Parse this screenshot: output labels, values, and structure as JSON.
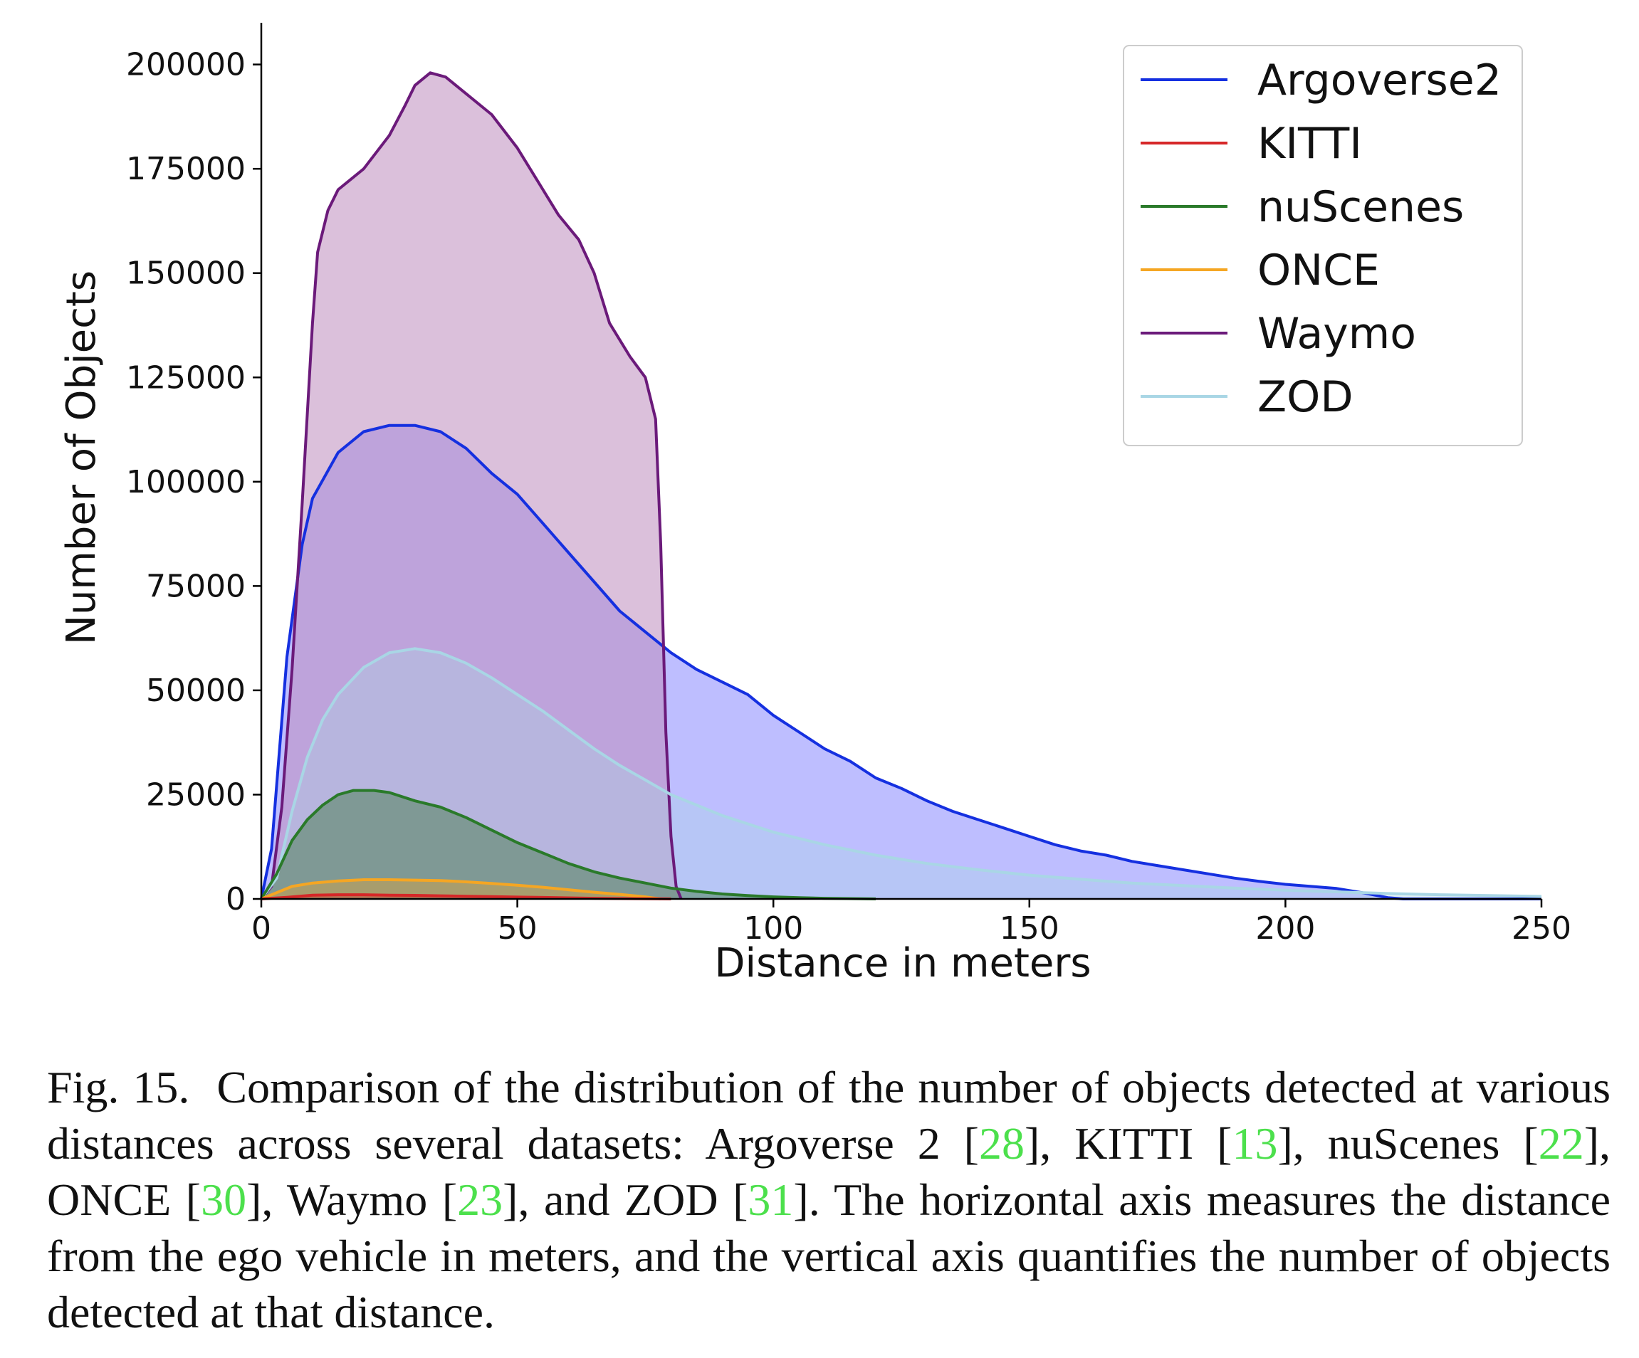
{
  "chart_data": {
    "type": "area",
    "xlabel": "Distance in meters",
    "ylabel": "Number of Objects",
    "xlim": [
      0,
      250
    ],
    "ylim": [
      0,
      210000
    ],
    "x_ticks": [
      0,
      50,
      100,
      150,
      200,
      250
    ],
    "y_ticks": [
      0,
      25000,
      50000,
      75000,
      100000,
      125000,
      150000,
      175000,
      200000
    ],
    "grid": false,
    "legend_position": "top-right",
    "series": [
      {
        "name": "Argoverse2",
        "color": "#1530e0",
        "fill": "rgba(110, 110, 255, 0.45)",
        "points": [
          [
            0,
            0
          ],
          [
            2,
            12000
          ],
          [
            5,
            58000
          ],
          [
            8,
            85000
          ],
          [
            10,
            96000
          ],
          [
            15,
            107000
          ],
          [
            20,
            112000
          ],
          [
            25,
            113500
          ],
          [
            30,
            113500
          ],
          [
            35,
            112000
          ],
          [
            40,
            108000
          ],
          [
            45,
            102000
          ],
          [
            50,
            97000
          ],
          [
            55,
            90000
          ],
          [
            60,
            83000
          ],
          [
            65,
            76000
          ],
          [
            70,
            69000
          ],
          [
            75,
            64000
          ],
          [
            80,
            59000
          ],
          [
            85,
            55000
          ],
          [
            90,
            52000
          ],
          [
            95,
            49000
          ],
          [
            100,
            44000
          ],
          [
            105,
            40000
          ],
          [
            110,
            36000
          ],
          [
            115,
            33000
          ],
          [
            120,
            29000
          ],
          [
            125,
            26500
          ],
          [
            130,
            23500
          ],
          [
            135,
            21000
          ],
          [
            140,
            19000
          ],
          [
            145,
            17000
          ],
          [
            150,
            15000
          ],
          [
            155,
            13000
          ],
          [
            160,
            11500
          ],
          [
            165,
            10500
          ],
          [
            170,
            9000
          ],
          [
            175,
            8000
          ],
          [
            180,
            7000
          ],
          [
            185,
            6000
          ],
          [
            190,
            5000
          ],
          [
            195,
            4200
          ],
          [
            200,
            3500
          ],
          [
            205,
            3000
          ],
          [
            210,
            2500
          ],
          [
            215,
            1500
          ],
          [
            220,
            300
          ],
          [
            223,
            0
          ],
          [
            250,
            0
          ]
        ]
      },
      {
        "name": "KITTI",
        "color": "#d62728",
        "fill": "rgba(214, 39, 40, 0.35)",
        "points": [
          [
            0,
            0
          ],
          [
            5,
            400
          ],
          [
            10,
            900
          ],
          [
            15,
            1000
          ],
          [
            20,
            1000
          ],
          [
            25,
            900
          ],
          [
            30,
            850
          ],
          [
            35,
            750
          ],
          [
            40,
            650
          ],
          [
            45,
            550
          ],
          [
            50,
            450
          ],
          [
            55,
            350
          ],
          [
            60,
            250
          ],
          [
            65,
            150
          ],
          [
            70,
            80
          ],
          [
            75,
            30
          ],
          [
            80,
            0
          ]
        ]
      },
      {
        "name": "nuScenes",
        "color": "#2a7a2a",
        "fill": "rgba(60, 120, 60, 0.45)",
        "points": [
          [
            0,
            0
          ],
          [
            3,
            6000
          ],
          [
            6,
            14000
          ],
          [
            9,
            19000
          ],
          [
            12,
            22500
          ],
          [
            15,
            25000
          ],
          [
            18,
            26000
          ],
          [
            22,
            26000
          ],
          [
            25,
            25500
          ],
          [
            30,
            23500
          ],
          [
            35,
            22000
          ],
          [
            40,
            19500
          ],
          [
            45,
            16500
          ],
          [
            50,
            13500
          ],
          [
            55,
            11000
          ],
          [
            60,
            8500
          ],
          [
            65,
            6500
          ],
          [
            70,
            5000
          ],
          [
            75,
            3800
          ],
          [
            80,
            2600
          ],
          [
            85,
            1800
          ],
          [
            90,
            1200
          ],
          [
            95,
            800
          ],
          [
            100,
            500
          ],
          [
            105,
            300
          ],
          [
            110,
            150
          ],
          [
            120,
            0
          ]
        ]
      },
      {
        "name": "ONCE",
        "color": "#f5a623",
        "fill": "rgba(245, 166, 35, 0.35)",
        "points": [
          [
            0,
            0
          ],
          [
            3,
            1500
          ],
          [
            6,
            3000
          ],
          [
            10,
            3800
          ],
          [
            15,
            4300
          ],
          [
            20,
            4600
          ],
          [
            25,
            4600
          ],
          [
            30,
            4500
          ],
          [
            35,
            4400
          ],
          [
            40,
            4100
          ],
          [
            45,
            3700
          ],
          [
            50,
            3300
          ],
          [
            55,
            2800
          ],
          [
            60,
            2200
          ],
          [
            65,
            1600
          ],
          [
            70,
            1100
          ],
          [
            75,
            500
          ],
          [
            78,
            0
          ]
        ]
      },
      {
        "name": "Waymo",
        "color": "#6b1a7a",
        "fill": "rgba(190, 140, 190, 0.55)",
        "points": [
          [
            0,
            0
          ],
          [
            2,
            3000
          ],
          [
            4,
            22000
          ],
          [
            6,
            55000
          ],
          [
            8,
            95000
          ],
          [
            10,
            138000
          ],
          [
            11,
            155000
          ],
          [
            13,
            165000
          ],
          [
            15,
            170000
          ],
          [
            20,
            175000
          ],
          [
            25,
            183000
          ],
          [
            28,
            190000
          ],
          [
            30,
            195000
          ],
          [
            33,
            198000
          ],
          [
            36,
            197000
          ],
          [
            40,
            193000
          ],
          [
            45,
            188000
          ],
          [
            50,
            180000
          ],
          [
            55,
            170000
          ],
          [
            58,
            164000
          ],
          [
            62,
            158000
          ],
          [
            65,
            150000
          ],
          [
            68,
            138000
          ],
          [
            72,
            130000
          ],
          [
            75,
            125000
          ],
          [
            77,
            115000
          ],
          [
            78,
            85000
          ],
          [
            79,
            40000
          ],
          [
            80,
            15000
          ],
          [
            81,
            3000
          ],
          [
            82,
            0
          ]
        ]
      },
      {
        "name": "ZOD",
        "color": "#a9d6e5",
        "fill": "rgba(173, 216, 230, 0.35)",
        "points": [
          [
            0,
            0
          ],
          [
            3,
            5000
          ],
          [
            6,
            21000
          ],
          [
            9,
            34000
          ],
          [
            12,
            43000
          ],
          [
            15,
            49000
          ],
          [
            20,
            55500
          ],
          [
            25,
            59000
          ],
          [
            30,
            60000
          ],
          [
            35,
            59000
          ],
          [
            40,
            56500
          ],
          [
            45,
            53000
          ],
          [
            50,
            49000
          ],
          [
            55,
            45000
          ],
          [
            60,
            40500
          ],
          [
            65,
            36000
          ],
          [
            70,
            32000
          ],
          [
            75,
            28500
          ],
          [
            80,
            25000
          ],
          [
            85,
            22500
          ],
          [
            90,
            20000
          ],
          [
            95,
            18000
          ],
          [
            100,
            16000
          ],
          [
            110,
            13000
          ],
          [
            120,
            10500
          ],
          [
            130,
            8500
          ],
          [
            140,
            7000
          ],
          [
            150,
            5700
          ],
          [
            160,
            4700
          ],
          [
            170,
            3800
          ],
          [
            180,
            3200
          ],
          [
            190,
            2600
          ],
          [
            200,
            2100
          ],
          [
            210,
            1700
          ],
          [
            220,
            1300
          ],
          [
            230,
            1000
          ],
          [
            240,
            800
          ],
          [
            250,
            600
          ]
        ]
      }
    ]
  },
  "caption": {
    "label": "Fig. 15.",
    "p1": "Comparison of the distribution of the number of objects detected at various distances across several datasets: Argoverse 2 [",
    "r1": "28",
    "p2": "], KITTI [",
    "r2": "13",
    "p3": "], nuScenes [",
    "r3": "22",
    "p4": "], ONCE [",
    "r4": "30",
    "p5": "], Waymo [",
    "r5": "23",
    "p6": "], and ZOD [",
    "r6": "31",
    "p7": "]. The horizontal axis measures the distance from the ego vehicle in meters, and the vertical axis quantifies the number of objects detected at that distance."
  }
}
